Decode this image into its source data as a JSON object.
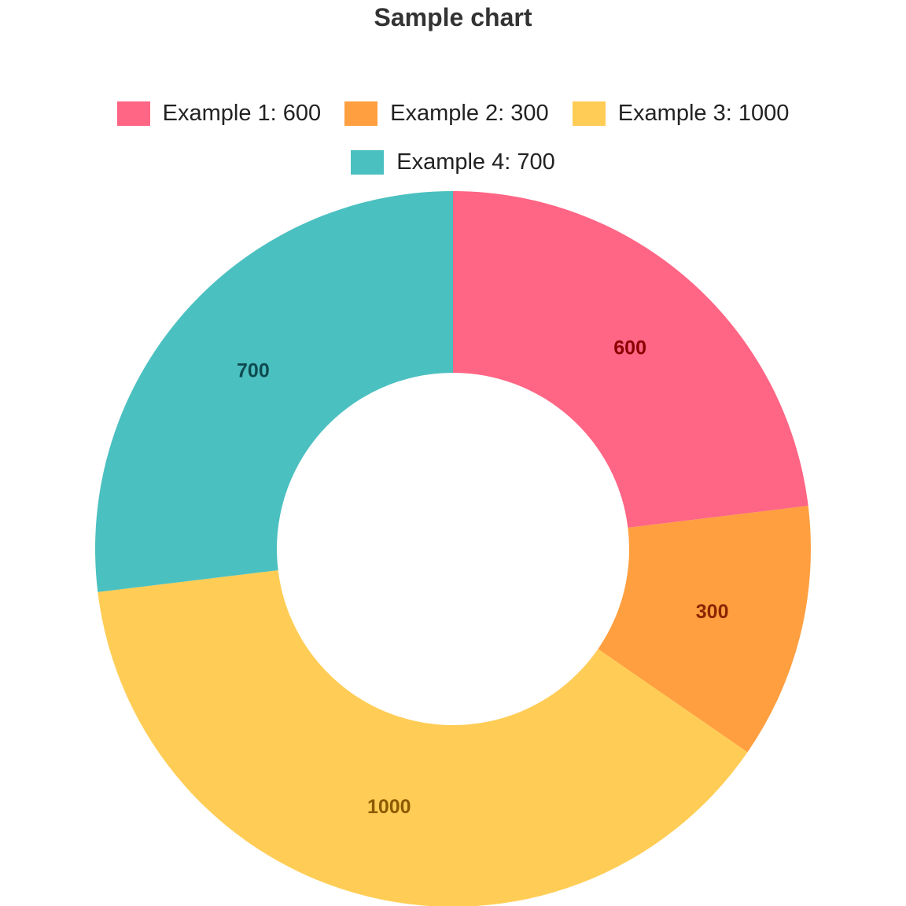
{
  "chart_data": {
    "type": "pie",
    "variant": "doughnut",
    "title": "Sample chart",
    "legend_position": "top",
    "slices": [
      {
        "label": "Example 1",
        "value": 600,
        "legend_text": "Example 1: 600",
        "data_label": "600",
        "color": "#FF6584",
        "label_color": "#8B0000"
      },
      {
        "label": "Example 2",
        "value": 300,
        "legend_text": "Example 2: 300",
        "data_label": "300",
        "color": "#FF9F40",
        "label_color": "#8B2500"
      },
      {
        "label": "Example 3",
        "value": 1000,
        "legend_text": "Example 3: 1000",
        "data_label": "1000",
        "color": "#FFCD56",
        "label_color": "#8B5A00"
      },
      {
        "label": "Example 4",
        "value": 700,
        "legend_text": "Example 4: 700",
        "data_label": "700",
        "color": "#4BC0C0",
        "label_color": "#0E4A4F"
      }
    ]
  }
}
